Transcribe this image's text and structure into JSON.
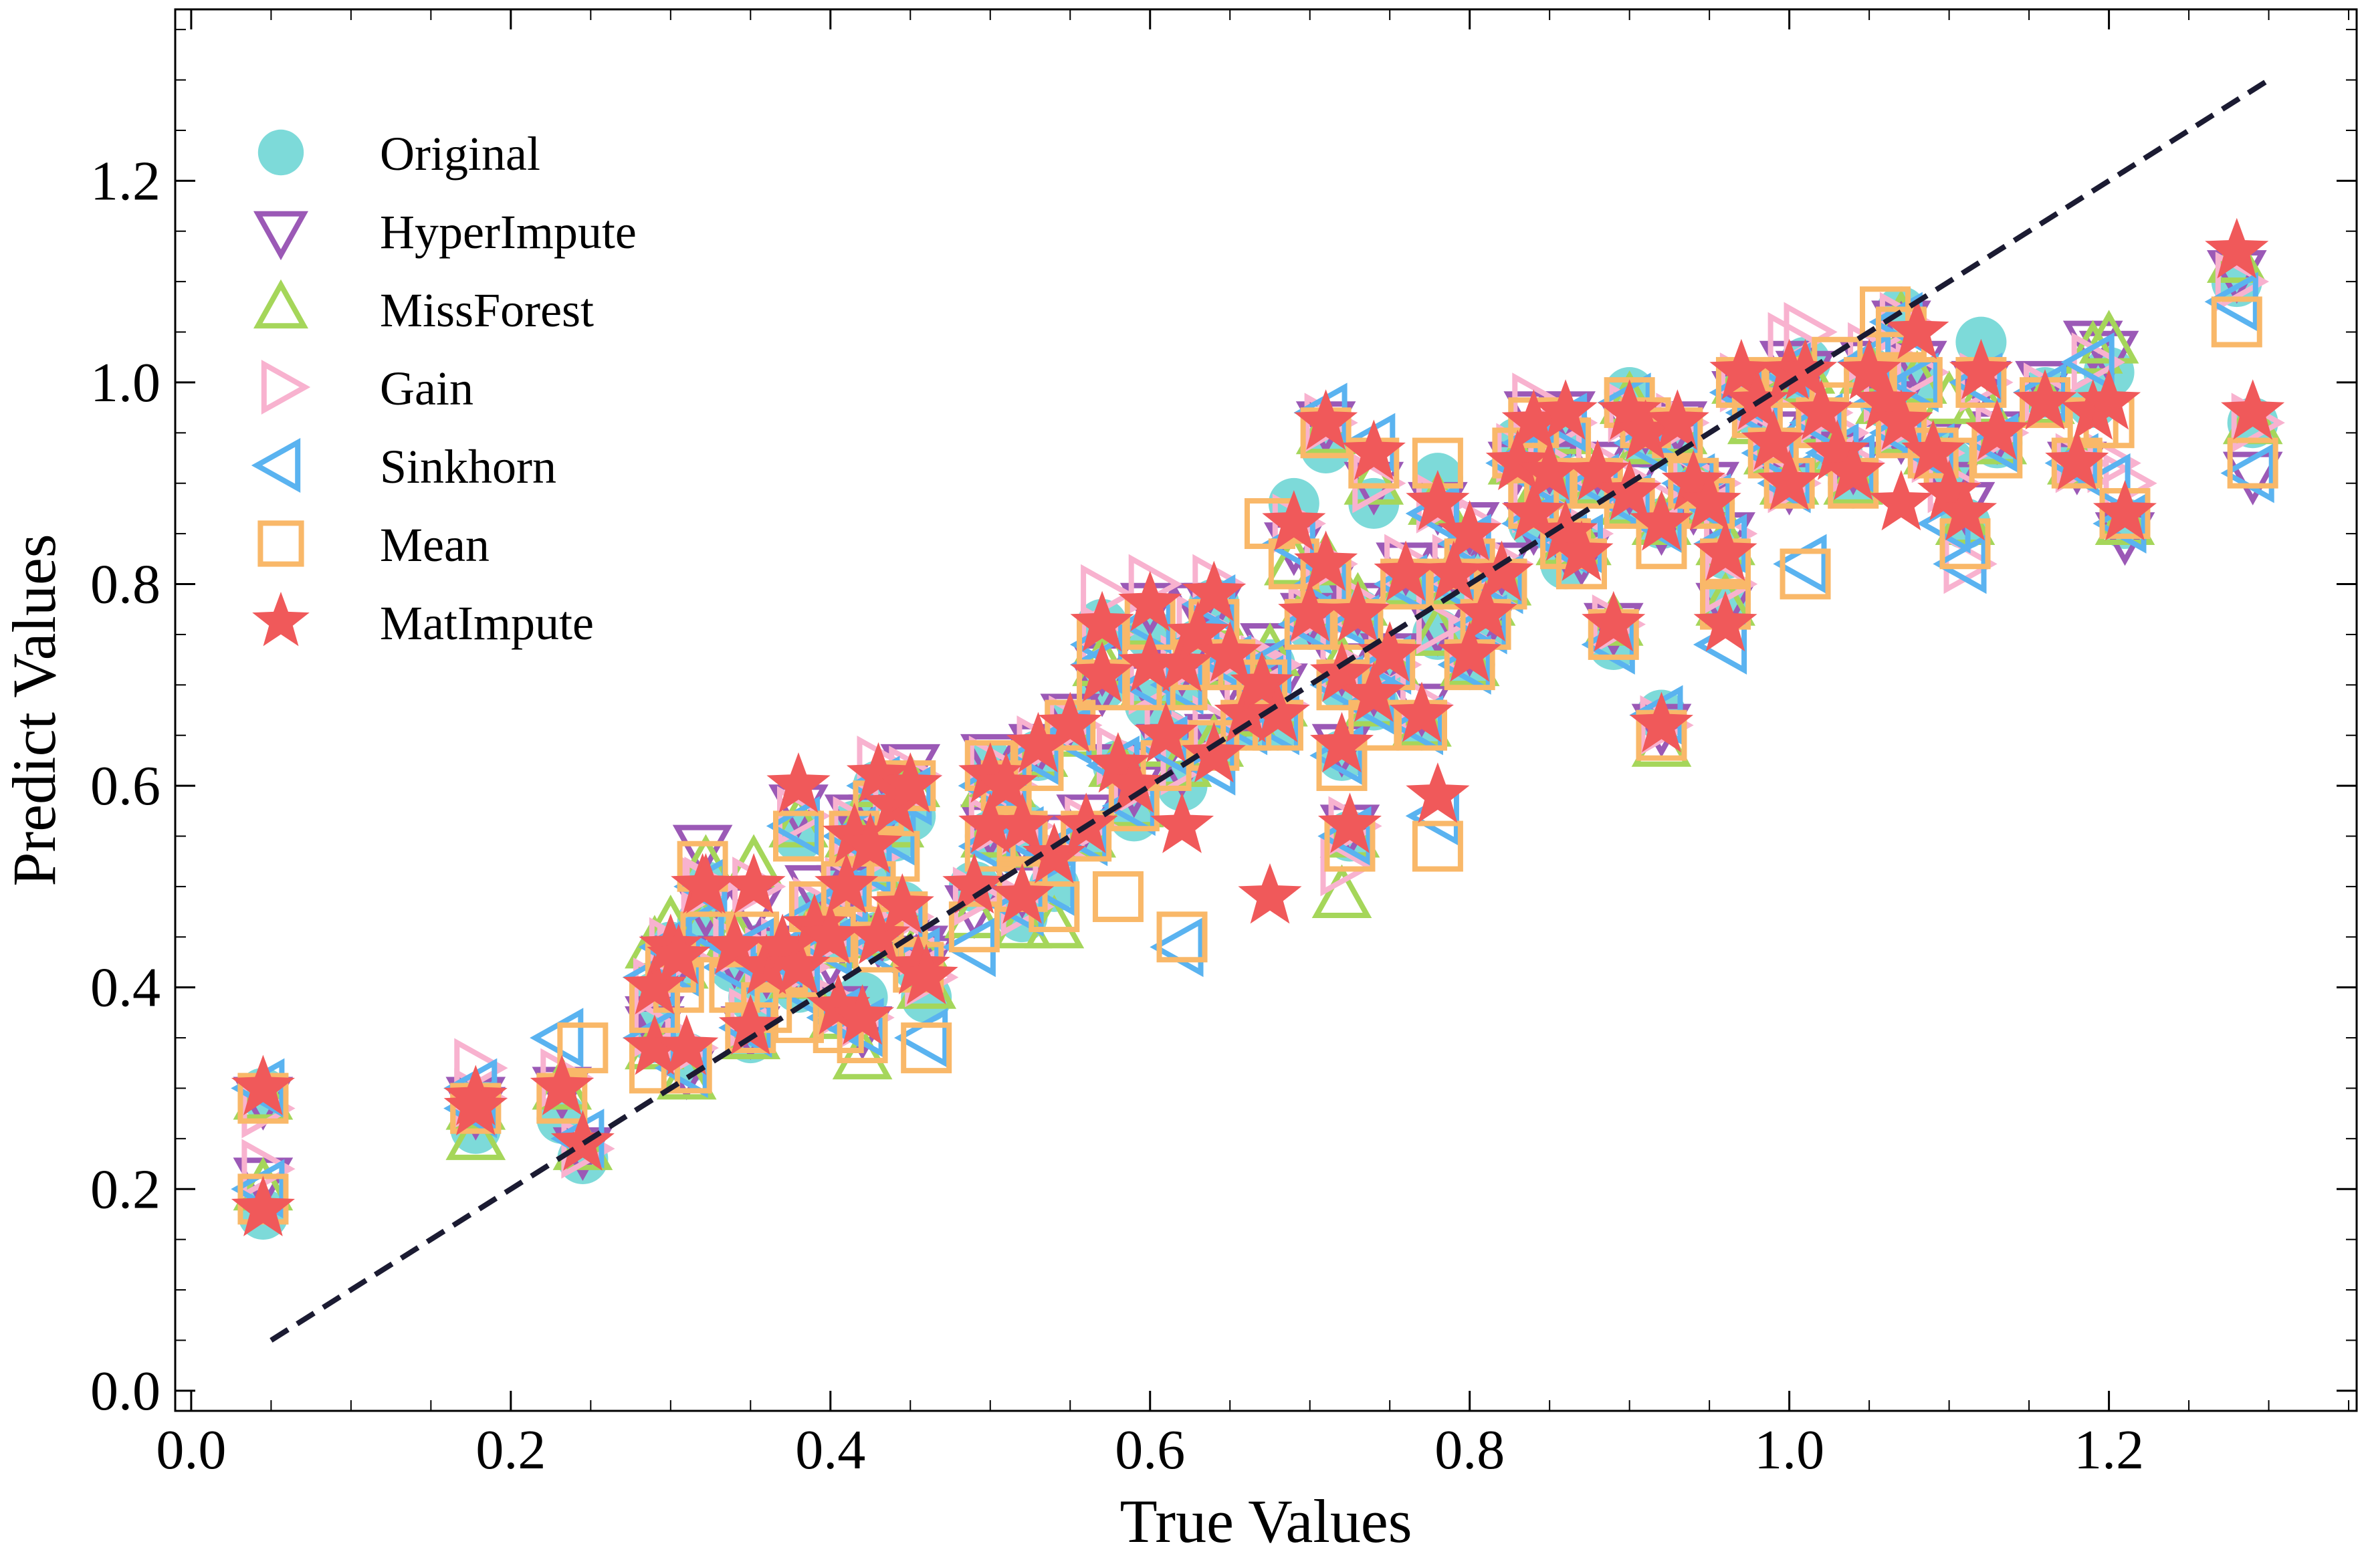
{
  "chart_data": {
    "type": "scatter",
    "title": "",
    "xlabel": "True Values",
    "ylabel": "Predict Values",
    "xlim": [
      -0.01,
      1.355
    ],
    "ylim": [
      -0.02,
      1.37
    ],
    "xticks": [
      0.0,
      0.2,
      0.4,
      0.6,
      0.8,
      1.0,
      1.2
    ],
    "xtick_labels": [
      "0.0",
      "0.2",
      "0.4",
      "0.6",
      "0.8",
      "1.0",
      "1.2"
    ],
    "yticks": [
      0.0,
      0.2,
      0.4,
      0.6,
      0.8,
      1.0,
      1.2
    ],
    "ytick_labels": [
      "0.0",
      "0.2",
      "0.4",
      "0.6",
      "0.8",
      "1.0",
      "1.2"
    ],
    "grid": false,
    "legend_position": "top-left",
    "reference_line": {
      "style": "dashed",
      "color": "#1b1b32",
      "x": [
        0.05,
        1.3
      ],
      "y": [
        0.05,
        1.3
      ]
    },
    "x": [
      0.045,
      0.045,
      0.178,
      0.178,
      0.232,
      0.245,
      0.29,
      0.29,
      0.3,
      0.305,
      0.31,
      0.32,
      0.322,
      0.34,
      0.35,
      0.352,
      0.36,
      0.37,
      0.38,
      0.38,
      0.39,
      0.4,
      0.405,
      0.41,
      0.415,
      0.42,
      0.425,
      0.43,
      0.43,
      0.44,
      0.445,
      0.45,
      0.455,
      0.46,
      0.49,
      0.5,
      0.5,
      0.51,
      0.52,
      0.52,
      0.53,
      0.54,
      0.55,
      0.56,
      0.57,
      0.57,
      0.58,
      0.59,
      0.6,
      0.6,
      0.61,
      0.62,
      0.62,
      0.63,
      0.64,
      0.64,
      0.65,
      0.66,
      0.67,
      0.675,
      0.68,
      0.69,
      0.7,
      0.71,
      0.71,
      0.72,
      0.72,
      0.725,
      0.73,
      0.74,
      0.74,
      0.75,
      0.76,
      0.77,
      0.78,
      0.78,
      0.79,
      0.8,
      0.8,
      0.81,
      0.82,
      0.83,
      0.84,
      0.84,
      0.85,
      0.86,
      0.86,
      0.87,
      0.88,
      0.89,
      0.9,
      0.9,
      0.91,
      0.92,
      0.92,
      0.93,
      0.94,
      0.95,
      0.96,
      0.96,
      0.97,
      0.98,
      0.99,
      1.0,
      1.0,
      1.01,
      1.02,
      1.03,
      1.04,
      1.05,
      1.06,
      1.07,
      1.07,
      1.08,
      1.09,
      1.1,
      1.11,
      1.12,
      1.13,
      1.16,
      1.18,
      1.19,
      1.2,
      1.21,
      1.28,
      1.29
    ],
    "series": [
      {
        "name": "Original",
        "marker": "circle",
        "color": "#7ddad9",
        "y": [
          0.175,
          0.295,
          0.26,
          0.285,
          0.27,
          0.23,
          0.35,
          0.39,
          0.44,
          0.42,
          0.33,
          0.465,
          0.5,
          0.42,
          0.35,
          0.39,
          0.44,
          0.42,
          0.55,
          0.4,
          0.47,
          0.45,
          0.38,
          0.5,
          0.56,
          0.39,
          0.52,
          0.6,
          0.45,
          0.55,
          0.48,
          0.57,
          0.42,
          0.39,
          0.5,
          0.62,
          0.55,
          0.58,
          0.47,
          0.56,
          0.63,
          0.5,
          0.66,
          0.55,
          0.7,
          0.76,
          0.62,
          0.57,
          0.68,
          0.75,
          0.65,
          0.6,
          0.7,
          0.74,
          0.78,
          0.64,
          0.72,
          0.66,
          0.7,
          0.72,
          0.66,
          0.88,
          0.76,
          0.935,
          0.8,
          0.7,
          0.63,
          0.55,
          0.77,
          0.88,
          0.68,
          0.72,
          0.8,
          0.66,
          0.905,
          0.75,
          0.8,
          0.82,
          0.72,
          0.76,
          0.8,
          0.94,
          0.86,
          0.93,
          0.9,
          0.95,
          0.82,
          0.84,
          0.9,
          0.74,
          0.99,
          0.88,
          0.94,
          0.67,
          0.86,
          0.94,
          0.9,
          0.88,
          0.83,
          0.78,
          1.0,
          0.97,
          0.93,
          1.0,
          0.9,
          1.02,
          0.96,
          0.93,
          0.9,
          1.01,
          0.98,
          1.07,
          0.95,
          1.0,
          0.93,
          0.92,
          0.86,
          1.04,
          0.94,
          0.99,
          0.92,
          0.98,
          1.01,
          0.86,
          1.1,
          0.96
        ]
      },
      {
        "name": "HyperImpute",
        "marker": "triangle-down",
        "color": "#9b59b6",
        "y": [
          0.21,
          0.29,
          0.28,
          0.29,
          0.3,
          0.24,
          0.36,
          0.37,
          0.43,
          0.43,
          0.32,
          0.54,
          0.48,
          0.43,
          0.36,
          0.48,
          0.42,
          0.44,
          0.58,
          0.42,
          0.5,
          0.43,
          0.38,
          0.5,
          0.57,
          0.36,
          0.55,
          0.57,
          0.45,
          0.6,
          0.45,
          0.62,
          0.44,
          0.43,
          0.48,
          0.63,
          0.56,
          0.6,
          0.5,
          0.55,
          0.64,
          0.55,
          0.67,
          0.57,
          0.7,
          0.72,
          0.62,
          0.6,
          0.7,
          0.78,
          0.64,
          0.62,
          0.72,
          0.78,
          0.78,
          0.65,
          0.71,
          0.68,
          0.72,
          0.74,
          0.7,
          0.84,
          0.77,
          0.96,
          0.8,
          0.72,
          0.64,
          0.56,
          0.78,
          0.9,
          0.7,
          0.73,
          0.82,
          0.68,
          0.88,
          0.76,
          0.82,
          0.86,
          0.74,
          0.76,
          0.82,
          0.92,
          0.86,
          0.97,
          0.92,
          0.97,
          0.84,
          0.83,
          0.92,
          0.76,
          0.96,
          0.9,
          0.96,
          0.66,
          0.86,
          0.96,
          0.88,
          0.9,
          0.85,
          0.78,
          0.99,
          0.98,
          0.95,
          1.02,
          0.9,
          1.01,
          0.96,
          0.93,
          0.92,
          1.02,
          0.98,
          1.06,
          0.95,
          1.02,
          0.94,
          0.9,
          0.88,
          1.0,
          0.95,
          1.0,
          0.92,
          1.04,
          1.03,
          0.85,
          1.11,
          0.91
        ]
      },
      {
        "name": "MissForest",
        "marker": "triangle-up",
        "color": "#a5d65a",
        "y": [
          0.2,
          0.29,
          0.25,
          0.28,
          0.3,
          0.24,
          0.34,
          0.44,
          0.46,
          0.42,
          0.31,
          0.46,
          0.52,
          0.45,
          0.35,
          0.52,
          0.42,
          0.43,
          0.56,
          0.41,
          0.46,
          0.44,
          0.37,
          0.48,
          0.55,
          0.33,
          0.52,
          0.6,
          0.45,
          0.56,
          0.46,
          0.6,
          0.44,
          0.4,
          0.47,
          0.6,
          0.55,
          0.6,
          0.46,
          0.54,
          0.63,
          0.46,
          0.65,
          0.55,
          0.72,
          0.74,
          0.62,
          0.58,
          0.7,
          0.76,
          0.64,
          0.62,
          0.7,
          0.74,
          0.77,
          0.64,
          0.72,
          0.67,
          0.7,
          0.73,
          0.68,
          0.82,
          0.78,
          0.95,
          0.82,
          0.72,
          0.49,
          0.55,
          0.78,
          0.9,
          0.68,
          0.72,
          0.8,
          0.66,
          0.88,
          0.75,
          0.8,
          0.84,
          0.72,
          0.78,
          0.8,
          0.92,
          0.88,
          0.94,
          0.9,
          0.95,
          0.84,
          0.84,
          0.9,
          0.76,
          0.98,
          0.88,
          0.94,
          0.64,
          0.86,
          0.95,
          0.9,
          0.88,
          0.84,
          0.78,
          1.0,
          0.96,
          0.93,
          1.0,
          0.9,
          1.01,
          0.96,
          0.93,
          0.9,
          1.01,
          0.98,
          1.06,
          0.95,
          1.0,
          0.93,
          0.98,
          0.86,
          0.98,
          0.94,
          0.98,
          0.92,
          1.03,
          1.04,
          0.86,
          1.12,
          0.96
        ]
      },
      {
        "name": "Gain",
        "marker": "triangle-right",
        "color": "#f8b2cf",
        "y": [
          0.22,
          0.28,
          0.32,
          0.29,
          0.31,
          0.24,
          0.36,
          0.4,
          0.44,
          0.43,
          0.34,
          0.5,
          0.5,
          0.44,
          0.37,
          0.5,
          0.43,
          0.44,
          0.57,
          0.42,
          0.48,
          0.45,
          0.38,
          0.5,
          0.56,
          0.37,
          0.53,
          0.62,
          0.46,
          0.58,
          0.47,
          0.61,
          0.44,
          0.41,
          0.49,
          0.62,
          0.56,
          0.6,
          0.48,
          0.56,
          0.64,
          0.53,
          0.66,
          0.56,
          0.79,
          0.75,
          0.63,
          0.6,
          0.7,
          0.8,
          0.66,
          0.62,
          0.72,
          0.76,
          0.8,
          0.66,
          0.73,
          0.68,
          0.72,
          0.72,
          0.68,
          0.86,
          0.77,
          0.96,
          0.82,
          0.72,
          0.52,
          0.56,
          0.78,
          0.9,
          0.7,
          0.72,
          0.82,
          0.68,
          0.88,
          0.76,
          0.82,
          0.86,
          0.74,
          0.78,
          0.82,
          0.93,
          0.88,
          0.98,
          0.92,
          0.96,
          0.86,
          0.85,
          0.92,
          0.76,
          0.97,
          0.9,
          0.96,
          0.66,
          0.88,
          0.96,
          0.9,
          0.9,
          0.85,
          0.8,
          1.0,
          0.98,
          0.94,
          1.04,
          0.9,
          1.05,
          0.97,
          0.95,
          0.92,
          1.03,
          0.99,
          1.06,
          0.96,
          1.01,
          0.93,
          0.9,
          0.82,
          1.0,
          0.95,
          0.99,
          0.92,
          1.02,
          0.92,
          0.9,
          1.1,
          0.96
        ]
      },
      {
        "name": "Sinkhorn",
        "marker": "triangle-left",
        "color": "#5ab3f0",
        "y": [
          0.2,
          0.3,
          0.3,
          0.28,
          0.35,
          0.25,
          0.35,
          0.41,
          0.44,
          0.42,
          0.32,
          0.46,
          0.5,
          0.42,
          0.36,
          0.44,
          0.42,
          0.43,
          0.56,
          0.4,
          0.47,
          0.44,
          0.37,
          0.49,
          0.55,
          0.36,
          0.52,
          0.6,
          0.44,
          0.55,
          0.46,
          0.59,
          0.43,
          0.35,
          0.44,
          0.6,
          0.54,
          0.6,
          0.48,
          0.55,
          0.63,
          0.5,
          0.65,
          0.55,
          0.72,
          0.74,
          0.62,
          0.58,
          0.7,
          0.76,
          0.64,
          0.44,
          0.7,
          0.74,
          0.78,
          0.62,
          0.72,
          0.66,
          0.7,
          0.72,
          0.66,
          0.84,
          0.76,
          0.97,
          0.8,
          0.7,
          0.63,
          0.55,
          0.76,
          0.94,
          0.68,
          0.72,
          0.8,
          0.66,
          0.87,
          0.57,
          0.8,
          0.84,
          0.72,
          0.76,
          0.8,
          0.92,
          0.86,
          0.94,
          0.9,
          0.96,
          0.84,
          0.84,
          0.9,
          0.74,
          0.98,
          0.88,
          0.94,
          0.67,
          0.86,
          0.94,
          0.9,
          0.88,
          0.84,
          0.74,
          0.99,
          0.97,
          0.93,
          1.01,
          0.9,
          0.82,
          0.96,
          0.93,
          0.92,
          1.02,
          0.98,
          1.06,
          0.95,
          1.0,
          0.93,
          0.86,
          0.82,
          1.0,
          0.94,
          0.99,
          0.92,
          1.02,
          0.9,
          0.86,
          1.08,
          0.91
        ]
      },
      {
        "name": "Mean",
        "marker": "square",
        "color": "#f9b869",
        "y": [
          0.19,
          0.29,
          0.28,
          0.28,
          0.29,
          0.34,
          0.32,
          0.38,
          0.42,
          0.4,
          0.32,
          0.52,
          0.45,
          0.4,
          0.36,
          0.45,
          0.38,
          0.42,
          0.55,
          0.37,
          0.48,
          0.45,
          0.36,
          0.5,
          0.55,
          0.35,
          0.5,
          0.58,
          0.44,
          0.53,
          0.47,
          0.6,
          0.42,
          0.34,
          0.46,
          0.62,
          0.54,
          0.6,
          0.5,
          0.55,
          0.62,
          0.48,
          0.66,
          0.55,
          0.7,
          0.74,
          0.49,
          0.58,
          0.7,
          0.76,
          0.62,
          0.45,
          0.7,
          0.72,
          0.76,
          0.64,
          0.72,
          0.66,
          0.7,
          0.86,
          0.66,
          0.82,
          0.76,
          0.95,
          0.8,
          0.7,
          0.62,
          0.54,
          0.76,
          0.92,
          0.66,
          0.72,
          0.8,
          0.66,
          0.92,
          0.54,
          0.8,
          0.82,
          0.72,
          0.76,
          0.8,
          0.93,
          0.88,
          0.96,
          0.9,
          0.94,
          0.84,
          0.82,
          0.9,
          0.75,
          0.98,
          0.88,
          0.96,
          0.65,
          0.84,
          0.95,
          0.9,
          0.88,
          0.82,
          0.78,
          1.0,
          0.97,
          0.93,
          1.0,
          0.9,
          0.81,
          0.96,
          1.02,
          0.9,
          1.0,
          1.07,
          1.05,
          0.95,
          1.0,
          0.93,
          0.92,
          0.84,
          1.0,
          0.93,
          0.98,
          0.92,
          0.96,
          0.96,
          0.87,
          1.06,
          0.92
        ]
      },
      {
        "name": "MatImpute",
        "marker": "star",
        "color": "#f0595a",
        "y": [
          0.18,
          0.3,
          0.29,
          0.28,
          0.3,
          0.245,
          0.34,
          0.4,
          0.44,
          0.43,
          0.34,
          0.5,
          0.5,
          0.44,
          0.36,
          0.5,
          0.42,
          0.44,
          0.6,
          0.42,
          0.46,
          0.45,
          0.38,
          0.5,
          0.55,
          0.37,
          0.54,
          0.61,
          0.45,
          0.58,
          0.48,
          0.6,
          0.42,
          0.41,
          0.5,
          0.61,
          0.56,
          0.6,
          0.49,
          0.56,
          0.64,
          0.53,
          0.66,
          0.56,
          0.71,
          0.76,
          0.62,
          0.6,
          0.72,
          0.78,
          0.65,
          0.56,
          0.72,
          0.75,
          0.79,
          0.63,
          0.73,
          0.67,
          0.7,
          0.49,
          0.67,
          0.86,
          0.77,
          0.96,
          0.82,
          0.71,
          0.64,
          0.56,
          0.77,
          0.93,
          0.69,
          0.73,
          0.81,
          0.67,
          0.88,
          0.59,
          0.81,
          0.85,
          0.73,
          0.77,
          0.81,
          0.92,
          0.87,
          0.96,
          0.91,
          0.97,
          0.85,
          0.83,
          0.91,
          0.76,
          0.97,
          0.89,
          0.95,
          0.66,
          0.86,
          0.96,
          0.9,
          0.88,
          0.83,
          0.76,
          1.01,
          0.98,
          0.94,
          1.01,
          0.9,
          1.01,
          0.97,
          0.93,
          0.91,
          1.01,
          0.98,
          0.88,
          0.96,
          1.05,
          0.93,
          0.89,
          0.87,
          1.01,
          0.95,
          0.98,
          0.92,
          0.97,
          0.98,
          0.87,
          1.13,
          0.97
        ]
      }
    ]
  }
}
